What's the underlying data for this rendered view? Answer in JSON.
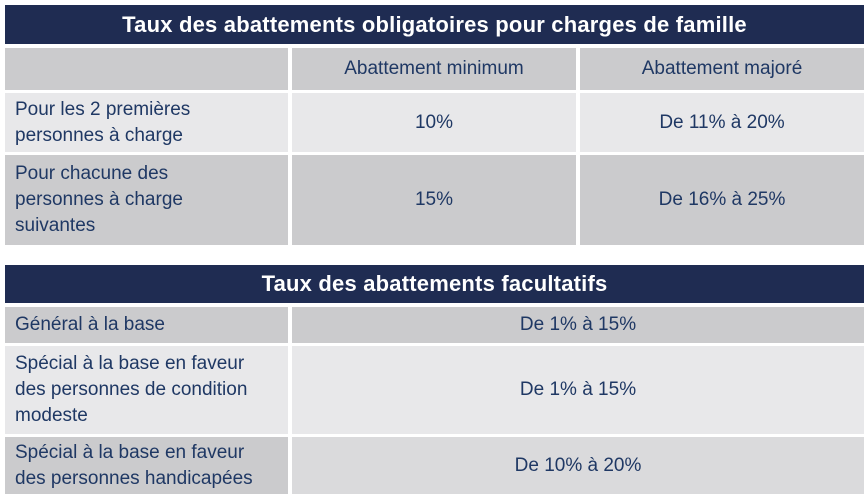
{
  "colors": {
    "title_bar_bg": "#1f2c52",
    "title_text": "#ffffff",
    "cell_text": "#1f3864",
    "row_gray": "#cbcbcd",
    "row_light_gray": "#e8e8ea",
    "row_medium_light_gray": "#dadadc",
    "page_bg": "#ffffff"
  },
  "table1": {
    "title": "Taux des abattements obligatoires pour charges de famille",
    "columns": [
      "",
      "Abattement minimum",
      "Abattement majoré"
    ],
    "rows": [
      {
        "label": "Pour les 2 premières\npersonnes à charge",
        "minimum": "10%",
        "majore": "De 11% à 20%"
      },
      {
        "label": "Pour chacune des\npersonnes à charge\nsuivantes",
        "minimum": "15%",
        "majore": "De 16% à 25%"
      }
    ]
  },
  "table2": {
    "title": "Taux des abattements facultatifs",
    "rows": [
      {
        "label": "Général à la base",
        "value": "De 1% à 15%"
      },
      {
        "label": "Spécial à la base en faveur\ndes personnes de condition\nmodeste",
        "value": "De 1% à 15%"
      },
      {
        "label": "Spécial à la base en faveur\ndes personnes handicapées",
        "value": "De 10% à 20%"
      }
    ]
  }
}
